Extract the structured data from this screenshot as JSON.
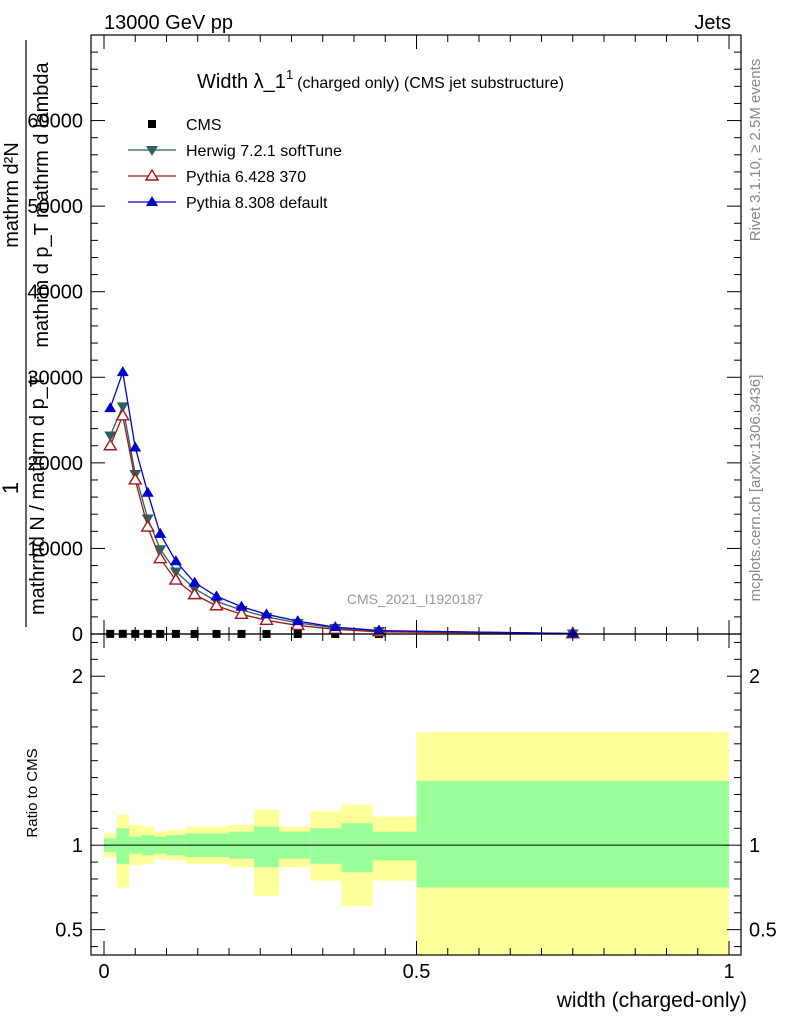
{
  "header": {
    "energy_label": "13000 GeV pp",
    "jets_label": "Jets",
    "rivet_label": "Rivet 3.1.10, ≥ 2.5M events",
    "mcplots_label": "mcplots.cern.ch [arXiv:1306.3436]",
    "analysis_label": "CMS_2021_I1920187"
  },
  "chart_data": [
    {
      "type": "line",
      "panel": "main",
      "title": "Width λ_1",
      "title_sup": "1",
      "subtitle": "(charged only) (CMS jet substructure)",
      "ylabel_num": "mathrm d²N",
      "ylabel_num_mid": "mathrm d p_T mathrm d lambda",
      "ylabel_one": "1",
      "ylabel_den": "mathrmd N / mathrm d p_T",
      "xlabel": "",
      "xlim": [
        0,
        1
      ],
      "ylim": [
        0,
        70000
      ],
      "yticks": [
        {
          "v": 0,
          "label": "0"
        },
        {
          "v": 10000,
          "label": "10000"
        },
        {
          "v": 20000,
          "label": "20000"
        },
        {
          "v": 30000,
          "label": "30000"
        },
        {
          "v": 40000,
          "label": "40000"
        },
        {
          "v": 50000,
          "label": "50000"
        },
        {
          "v": 60000,
          "label": "60000"
        }
      ],
      "legend_position": "top-left",
      "series": [
        {
          "name": "CMS",
          "marker": "square",
          "color": "#000000",
          "points": [
            [
              0.01,
              15
            ],
            [
              0.03,
              18
            ],
            [
              0.05,
              15
            ],
            [
              0.07,
              13
            ],
            [
              0.09,
              11
            ],
            [
              0.115,
              10
            ],
            [
              0.145,
              9
            ],
            [
              0.18,
              8
            ],
            [
              0.22,
              7
            ],
            [
              0.26,
              6
            ],
            [
              0.31,
              4
            ],
            [
              0.37,
              3
            ],
            [
              0.44,
              2
            ],
            [
              0.75,
              1
            ]
          ]
        },
        {
          "name": "Herwig 7.2.1 softTune",
          "marker": "triangle-down",
          "color": "#2f6060",
          "points": [
            [
              0.01,
              23200
            ],
            [
              0.03,
              26600
            ],
            [
              0.05,
              18700
            ],
            [
              0.07,
              13500
            ],
            [
              0.09,
              9900
            ],
            [
              0.115,
              7300
            ],
            [
              0.145,
              5300
            ],
            [
              0.18,
              3800
            ],
            [
              0.22,
              2800
            ],
            [
              0.26,
              2000
            ],
            [
              0.31,
              1300
            ],
            [
              0.37,
              700
            ],
            [
              0.44,
              350
            ],
            [
              0.75,
              60
            ]
          ]
        },
        {
          "name": "Pythia 6.428 370",
          "marker": "triangle-up-open",
          "color": "#a01818",
          "points": [
            [
              0.01,
              22000
            ],
            [
              0.03,
              25500
            ],
            [
              0.05,
              18000
            ],
            [
              0.07,
              12500
            ],
            [
              0.09,
              8800
            ],
            [
              0.115,
              6300
            ],
            [
              0.145,
              4600
            ],
            [
              0.18,
              3300
            ],
            [
              0.22,
              2300
            ],
            [
              0.26,
              1600
            ],
            [
              0.31,
              1000
            ],
            [
              0.37,
              550
            ],
            [
              0.44,
              250
            ],
            [
              0.75,
              40
            ]
          ]
        },
        {
          "name": "Pythia 8.308 default",
          "marker": "triangle-up",
          "color": "#0000cc",
          "points": [
            [
              0.01,
              26400
            ],
            [
              0.03,
              30600
            ],
            [
              0.05,
              21800
            ],
            [
              0.07,
              16500
            ],
            [
              0.09,
              11700
            ],
            [
              0.115,
              8500
            ],
            [
              0.145,
              6000
            ],
            [
              0.18,
              4400
            ],
            [
              0.22,
              3200
            ],
            [
              0.26,
              2300
            ],
            [
              0.31,
              1500
            ],
            [
              0.37,
              800
            ],
            [
              0.44,
              400
            ],
            [
              0.75,
              60
            ]
          ]
        }
      ]
    },
    {
      "type": "area",
      "panel": "ratio",
      "ylabel": "Ratio to CMS",
      "xlabel": "width (charged-only)",
      "xlim": [
        0,
        1
      ],
      "ylim": [
        0.35,
        2.25
      ],
      "xticks": [
        {
          "v": 0,
          "label": "0"
        },
        {
          "v": 0.5,
          "label": "0.5"
        },
        {
          "v": 1,
          "label": "1"
        }
      ],
      "yticks": [
        {
          "v": 0.5,
          "label": "0.5"
        },
        {
          "v": 1,
          "label": "1"
        },
        {
          "v": 2,
          "label": "2"
        }
      ],
      "reference_line": 1,
      "bands": [
        {
          "x0": 0.0,
          "x1": 0.02,
          "stat_lo": 0.96,
          "stat_hi": 1.04,
          "tot_lo": 0.93,
          "tot_hi": 1.07
        },
        {
          "x0": 0.02,
          "x1": 0.04,
          "stat_lo": 0.89,
          "stat_hi": 1.1,
          "tot_lo": 0.75,
          "tot_hi": 1.18
        },
        {
          "x0": 0.04,
          "x1": 0.06,
          "stat_lo": 0.95,
          "stat_hi": 1.05,
          "tot_lo": 0.88,
          "tot_hi": 1.12
        },
        {
          "x0": 0.06,
          "x1": 0.08,
          "stat_lo": 0.94,
          "stat_hi": 1.06,
          "tot_lo": 0.89,
          "tot_hi": 1.11
        },
        {
          "x0": 0.08,
          "x1": 0.1,
          "stat_lo": 0.95,
          "stat_hi": 1.05,
          "tot_lo": 0.92,
          "tot_hi": 1.08
        },
        {
          "x0": 0.1,
          "x1": 0.13,
          "stat_lo": 0.94,
          "stat_hi": 1.06,
          "tot_lo": 0.91,
          "tot_hi": 1.09
        },
        {
          "x0": 0.13,
          "x1": 0.16,
          "stat_lo": 0.93,
          "stat_hi": 1.07,
          "tot_lo": 0.89,
          "tot_hi": 1.11
        },
        {
          "x0": 0.16,
          "x1": 0.2,
          "stat_lo": 0.93,
          "stat_hi": 1.07,
          "tot_lo": 0.89,
          "tot_hi": 1.11
        },
        {
          "x0": 0.2,
          "x1": 0.24,
          "stat_lo": 0.92,
          "stat_hi": 1.08,
          "tot_lo": 0.87,
          "tot_hi": 1.12
        },
        {
          "x0": 0.24,
          "x1": 0.28,
          "stat_lo": 0.87,
          "stat_hi": 1.11,
          "tot_lo": 0.7,
          "tot_hi": 1.21
        },
        {
          "x0": 0.28,
          "x1": 0.33,
          "stat_lo": 0.92,
          "stat_hi": 1.08,
          "tot_lo": 0.87,
          "tot_hi": 1.11
        },
        {
          "x0": 0.33,
          "x1": 0.38,
          "stat_lo": 0.89,
          "stat_hi": 1.1,
          "tot_lo": 0.79,
          "tot_hi": 1.2
        },
        {
          "x0": 0.38,
          "x1": 0.43,
          "stat_lo": 0.84,
          "stat_hi": 1.13,
          "tot_lo": 0.64,
          "tot_hi": 1.24
        },
        {
          "x0": 0.43,
          "x1": 0.5,
          "stat_lo": 0.91,
          "stat_hi": 1.08,
          "tot_lo": 0.79,
          "tot_hi": 1.17
        },
        {
          "x0": 0.5,
          "x1": 1.0,
          "stat_lo": 0.75,
          "stat_hi": 1.38,
          "tot_lo": 0.35,
          "tot_hi": 1.67
        }
      ]
    }
  ],
  "colors": {
    "stat_band": "#99ff99",
    "total_band": "#ffff99",
    "axis": "#000000",
    "side_text": "#888888"
  }
}
